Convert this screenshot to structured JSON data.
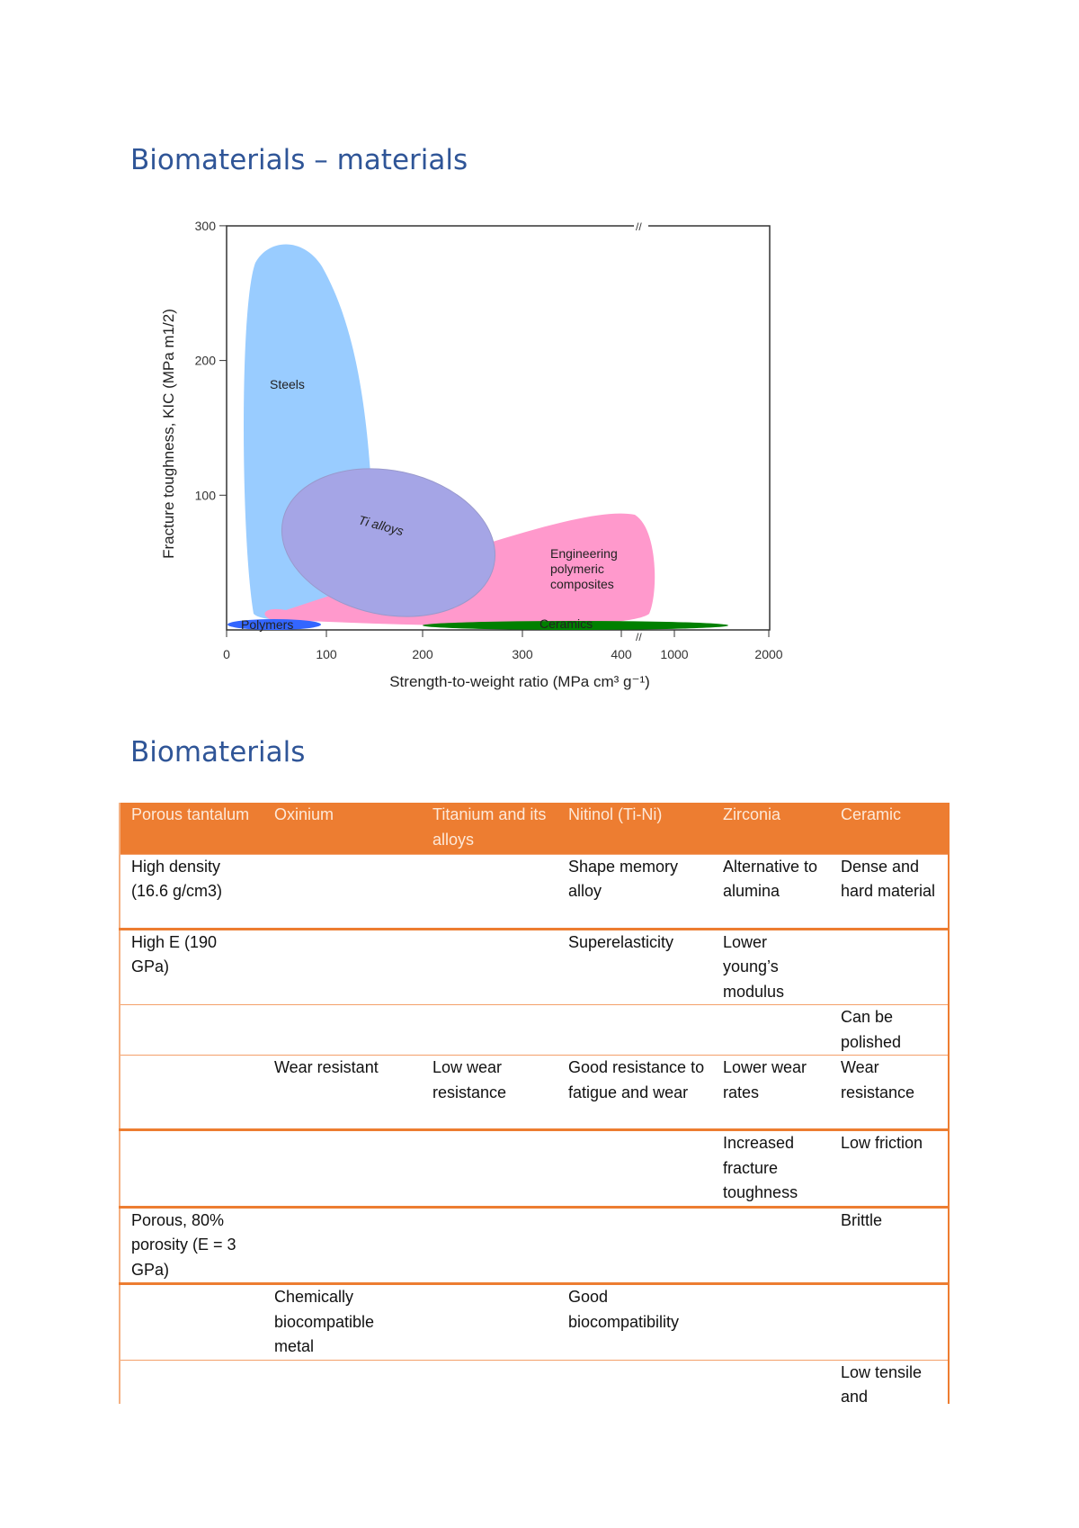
{
  "section1": {
    "title": "Biomaterials – materials"
  },
  "chart_data": {
    "type": "area",
    "xlabel": "Strength-to-weight ratio (MPa cm³ g⁻¹)",
    "ylabel": "Fracture toughness, KIC (MPa m1/2)",
    "x_tick_labels": [
      "0",
      "100",
      "200",
      "300",
      "400",
      "1000",
      "2000"
    ],
    "y_tick_labels": [
      "300",
      "200",
      "100"
    ],
    "ylim": [
      0,
      300
    ],
    "x_axis_break": "between 400 and 1000",
    "regions": [
      {
        "name": "Steels",
        "x_range": [
          15,
          165
        ],
        "y_range": [
          5,
          282
        ],
        "color": "#99ccff"
      },
      {
        "name": "Ti alloys",
        "x_range": [
          50,
          270
        ],
        "y_range": [
          10,
          118
        ],
        "color": "#a5a5e6"
      },
      {
        "name": "Engineering polymeric composites",
        "x_range": [
          40,
          1100
        ],
        "y_range": [
          5,
          87
        ],
        "color": "#ff99cc"
      },
      {
        "name": "Polymers",
        "x_range": [
          2,
          95
        ],
        "y_range": [
          0,
          6
        ],
        "color": "#3366ff"
      },
      {
        "name": "Ceramics",
        "x_range": [
          200,
          1600
        ],
        "y_range": [
          0,
          5
        ],
        "color": "#008000"
      }
    ]
  },
  "section2": {
    "title": "Biomaterials"
  },
  "table": {
    "headers": [
      "Porous tantalum",
      "Oxinium",
      "Titanium and its alloys",
      "Nitinol (Ti-Ni)",
      "Zirconia",
      "Ceramic"
    ],
    "rows": [
      [
        "High density (16.6 g/cm3)",
        "",
        "",
        "Shape memory alloy",
        "Alternative to alumina",
        "Dense and hard material"
      ],
      [
        "High E (190 GPa)",
        "",
        "",
        "Superelasticity",
        "Lower young’s modulus",
        ""
      ],
      [
        "",
        "",
        "",
        "",
        "",
        "Can be polished"
      ],
      [
        "",
        "Wear resistant",
        "Low wear resistance",
        "Good resistance to fatigue and wear",
        "Lower wear rates",
        "Wear resistance"
      ],
      [
        "",
        "",
        "",
        "",
        "Increased fracture toughness",
        "Low friction"
      ],
      [
        "Porous, 80% porosity (E = 3 GPa)",
        "",
        "",
        "",
        "",
        "Brittle"
      ],
      [
        "",
        "Chemically biocompatible metal",
        "",
        "Good biocompatibility",
        "",
        ""
      ],
      [
        "",
        "",
        "",
        "",
        "",
        "Low tensile and"
      ]
    ]
  },
  "colors": {
    "heading": "#2f5597",
    "table_accent": "#ed7d31"
  }
}
